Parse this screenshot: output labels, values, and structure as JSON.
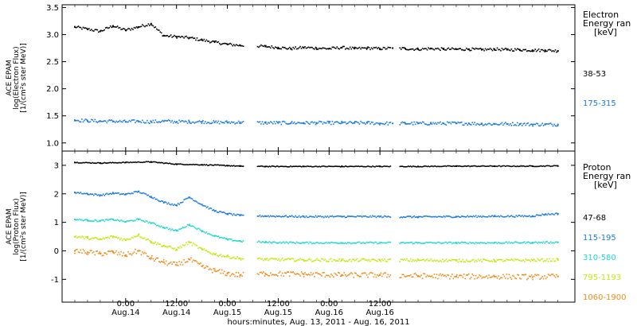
{
  "chart_data": [
    {
      "type": "scatter",
      "panel": "electron",
      "ylabel_lines": [
        "ACE EPAM",
        "log(Electron Flux)",
        "[1/(cm²s ster MeV)]"
      ],
      "ylim": [
        0.85,
        3.55
      ],
      "yticks": [
        "1.0",
        "1.5",
        "2.0",
        "2.5",
        "3.0",
        "3.5"
      ],
      "legend_title": [
        "Electron",
        "Energy ran",
        "[keV]"
      ],
      "series": [
        {
          "name": "38-53",
          "color": "#000000",
          "x_hours": [
            0,
            3,
            6,
            9,
            12,
            15,
            18,
            21,
            24,
            27,
            30,
            33,
            36,
            39,
            45,
            48,
            51,
            54,
            57,
            60,
            63,
            66,
            69,
            72,
            75,
            78,
            81,
            84,
            87,
            90,
            93,
            96,
            99,
            102,
            105,
            108,
            111,
            114
          ],
          "values": [
            3.14,
            3.1,
            3.06,
            3.16,
            3.08,
            3.14,
            3.2,
            2.98,
            2.96,
            2.94,
            2.9,
            2.86,
            2.82,
            2.8,
            2.78,
            2.76,
            2.74,
            2.76,
            2.75,
            2.74,
            2.76,
            2.74,
            2.75,
            2.74,
            2.75,
            2.74,
            2.73,
            2.74,
            2.73,
            2.73,
            2.73,
            2.72,
            2.73,
            2.72,
            2.72,
            2.71,
            2.71,
            2.7
          ]
        },
        {
          "name": "175-315",
          "color": "#1a7be0",
          "x_hours": [
            0,
            3,
            6,
            9,
            12,
            15,
            18,
            21,
            24,
            27,
            30,
            33,
            36,
            39,
            45,
            48,
            51,
            54,
            57,
            60,
            63,
            66,
            69,
            72,
            75,
            78,
            81,
            84,
            87,
            90,
            93,
            96,
            99,
            102,
            105,
            108,
            111,
            114
          ],
          "values": [
            1.42,
            1.41,
            1.4,
            1.4,
            1.39,
            1.4,
            1.39,
            1.4,
            1.39,
            1.39,
            1.39,
            1.38,
            1.38,
            1.38,
            1.37,
            1.37,
            1.37,
            1.37,
            1.37,
            1.37,
            1.37,
            1.37,
            1.37,
            1.36,
            1.36,
            1.36,
            1.36,
            1.36,
            1.36,
            1.36,
            1.36,
            1.35,
            1.35,
            1.35,
            1.35,
            1.34,
            1.34,
            1.34
          ]
        }
      ]
    },
    {
      "type": "scatter",
      "panel": "proton",
      "ylabel_lines": [
        "ACE EPAM",
        "log(Proton Flux)",
        "[1/(cm²s ster MeV)]"
      ],
      "ylim": [
        -1.8,
        3.5
      ],
      "yticks": [
        "-1",
        "0",
        "1",
        "2",
        "3"
      ],
      "legend_title": [
        "Proton",
        "Energy ran",
        "[keV]"
      ],
      "series": [
        {
          "name": "47-68",
          "color": "#000000",
          "x_hours": [
            0,
            6,
            12,
            18,
            24,
            30,
            36,
            39,
            45,
            54,
            63,
            72,
            81,
            90,
            99,
            108,
            114
          ],
          "values": [
            3.1,
            3.08,
            3.1,
            3.12,
            3.04,
            3.02,
            2.99,
            2.97,
            2.96,
            2.96,
            2.96,
            2.96,
            2.96,
            2.97,
            2.97,
            2.97,
            2.98
          ]
        },
        {
          "name": "115-195",
          "color": "#1a7be0",
          "x_hours": [
            0,
            3,
            6,
            9,
            12,
            15,
            18,
            21,
            24,
            27,
            30,
            33,
            36,
            39,
            45,
            54,
            63,
            72,
            81,
            90,
            99,
            108,
            111,
            114
          ],
          "values": [
            2.05,
            2.0,
            1.95,
            2.02,
            1.98,
            2.08,
            1.9,
            1.7,
            1.6,
            1.88,
            1.62,
            1.4,
            1.3,
            1.24,
            1.22,
            1.2,
            1.2,
            1.2,
            1.19,
            1.2,
            1.21,
            1.22,
            1.28,
            1.3
          ]
        },
        {
          "name": "310-580",
          "color": "#20d8d0",
          "x_hours": [
            0,
            3,
            6,
            9,
            12,
            15,
            18,
            21,
            24,
            27,
            30,
            33,
            36,
            39,
            45,
            54,
            63,
            72,
            81,
            90,
            99,
            108,
            114
          ],
          "values": [
            1.1,
            1.07,
            1.05,
            1.1,
            1.02,
            1.1,
            0.98,
            0.82,
            0.7,
            0.92,
            0.7,
            0.52,
            0.4,
            0.34,
            0.3,
            0.28,
            0.28,
            0.28,
            0.28,
            0.28,
            0.28,
            0.29,
            0.3
          ]
        },
        {
          "name": "795-1193",
          "color": "#c8e610",
          "x_hours": [
            0,
            3,
            6,
            9,
            12,
            15,
            18,
            21,
            24,
            27,
            30,
            33,
            36,
            39,
            45,
            54,
            63,
            72,
            81,
            90,
            99,
            108,
            114
          ],
          "values": [
            0.5,
            0.45,
            0.4,
            0.5,
            0.38,
            0.56,
            0.32,
            0.18,
            0.05,
            0.3,
            0.05,
            -0.12,
            -0.2,
            -0.27,
            -0.3,
            -0.32,
            -0.33,
            -0.33,
            -0.33,
            -0.34,
            -0.34,
            -0.33,
            -0.32
          ]
        },
        {
          "name": "1060-1900",
          "color": "#f08c1a",
          "x_hours": [
            0,
            3,
            6,
            9,
            12,
            15,
            18,
            21,
            24,
            27,
            30,
            33,
            36,
            39,
            45,
            54,
            63,
            72,
            81,
            90,
            99,
            108,
            114
          ],
          "values": [
            0.0,
            -0.05,
            -0.1,
            -0.05,
            -0.15,
            0.0,
            -0.25,
            -0.4,
            -0.5,
            -0.3,
            -0.55,
            -0.7,
            -0.8,
            -0.85,
            -0.8,
            -0.82,
            -0.85,
            -0.85,
            -0.88,
            -0.9,
            -0.9,
            -0.92,
            -0.9
          ]
        }
      ]
    }
  ],
  "x_axis": {
    "hour_range": [
      -3,
      118
    ],
    "gaps_hours": [
      [
        40,
        43
      ],
      [
        74.5,
        76.5
      ]
    ],
    "ticks": [
      {
        "hour": 12,
        "time": "0:00",
        "date": "Aug.14"
      },
      {
        "hour": 24,
        "time": "12:00",
        "date": "Aug.14"
      },
      {
        "hour": 36,
        "time": "0:00",
        "date": "Aug.15"
      },
      {
        "hour": 48,
        "time": "12:00",
        "date": "Aug.15"
      },
      {
        "hour": 60,
        "time": "0:00",
        "date": "Aug.16"
      },
      {
        "hour": 72,
        "time": "12:00",
        "date": "Aug.16"
      }
    ],
    "xlabel": "hours:minutes, Aug. 13, 2011 - Aug. 16, 2011"
  }
}
